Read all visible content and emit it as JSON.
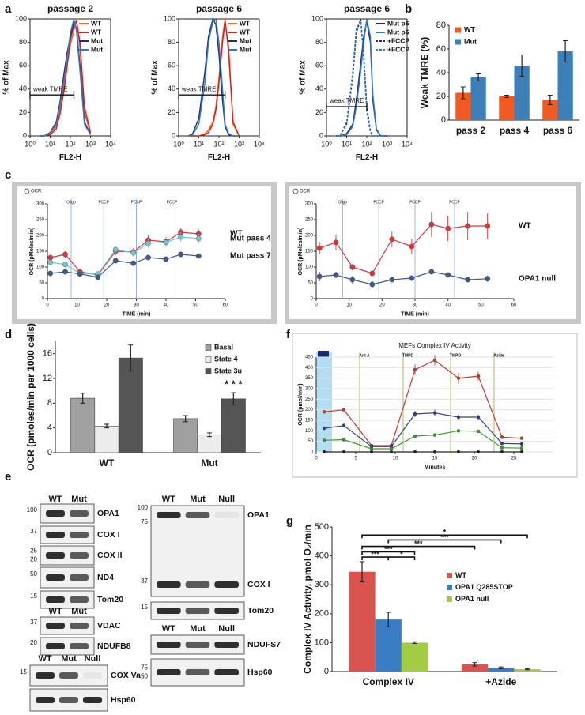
{
  "panel_labels": [
    "a",
    "b",
    "c",
    "d",
    "e",
    "f",
    "g"
  ],
  "chart_data": [
    {
      "type": "line",
      "title": "passage 2",
      "xlabel": "FL2-H",
      "ylabel": "% of Max",
      "log_x": true,
      "x": [
        3,
        5,
        10,
        20,
        30,
        50,
        70,
        100,
        150,
        200,
        300,
        500,
        1000
      ],
      "series": [
        {
          "name": "WT",
          "color": "#f26522",
          "values": [
            0,
            0,
            2,
            8,
            20,
            45,
            62,
            78,
            90,
            100,
            75,
            20,
            2
          ]
        },
        {
          "name": "WT",
          "color": "#e31a1c",
          "values": [
            0,
            0,
            1,
            6,
            18,
            40,
            60,
            82,
            95,
            98,
            80,
            25,
            3
          ]
        },
        {
          "name": "Mut",
          "color": "#1f2a7a",
          "values": [
            0,
            0,
            3,
            12,
            28,
            55,
            72,
            85,
            98,
            92,
            60,
            12,
            1
          ]
        },
        {
          "name": "Mut",
          "color": "#2b7bc0",
          "values": [
            0,
            0,
            3,
            10,
            25,
            50,
            68,
            88,
            100,
            90,
            55,
            10,
            1
          ]
        }
      ],
      "xlim": [
        1,
        10000
      ],
      "xticks": [
        {
          "value": 1,
          "label": "10⁰"
        },
        {
          "value": 10,
          "label": "10¹"
        },
        {
          "value": 100,
          "label": "10²"
        },
        {
          "value": 1000,
          "label": "10³"
        },
        {
          "value": 10000,
          "label": "10⁴"
        }
      ],
      "ylim": [
        0,
        100
      ],
      "yticks": [
        0,
        20,
        40,
        60,
        80,
        100
      ],
      "legend": "upper right",
      "gate": {
        "label": "weak TMRE",
        "range": [
          1,
          150
        ],
        "level": 35
      }
    },
    {
      "type": "line",
      "title": "passage 6",
      "xlabel": "FL2-H",
      "ylabel": "% of Max",
      "log_x": true,
      "x": [
        3,
        5,
        10,
        20,
        30,
        50,
        70,
        100,
        150,
        200,
        300,
        500,
        1000
      ],
      "series": [
        {
          "name": "WT",
          "color": "#f26522",
          "values": [
            0,
            0,
            0,
            2,
            5,
            12,
            25,
            50,
            85,
            100,
            70,
            10,
            0
          ]
        },
        {
          "name": "WT",
          "color": "#e31a1c",
          "values": [
            0,
            0,
            0,
            1,
            3,
            10,
            22,
            45,
            80,
            98,
            75,
            12,
            0
          ]
        },
        {
          "name": "Mut",
          "color": "#1f2a7a",
          "values": [
            0,
            2,
            15,
            55,
            85,
            100,
            95,
            70,
            30,
            8,
            1,
            0,
            0
          ]
        },
        {
          "name": "Mut",
          "color": "#2b7bc0",
          "values": [
            0,
            1,
            10,
            45,
            80,
            98,
            100,
            80,
            40,
            10,
            2,
            0,
            0
          ]
        }
      ],
      "xlim": [
        1,
        10000
      ],
      "xticks": [
        {
          "value": 1,
          "label": "10⁰"
        },
        {
          "value": 10,
          "label": "10¹"
        },
        {
          "value": 100,
          "label": "10²"
        },
        {
          "value": 1000,
          "label": "10³"
        },
        {
          "value": 10000,
          "label": "10⁴"
        }
      ],
      "ylim": [
        0,
        100
      ],
      "yticks": [
        0,
        20,
        40,
        60,
        80,
        100
      ],
      "legend": "upper right",
      "gate": {
        "label": "weak TMRE",
        "range": [
          1,
          200
        ],
        "level": 35
      }
    },
    {
      "type": "line",
      "title": "passage 6",
      "xlabel": "FL2-H",
      "ylabel": "% of Max",
      "log_x": true,
      "x": [
        3,
        5,
        10,
        20,
        30,
        50,
        70,
        100,
        150,
        200,
        300,
        500,
        1000
      ],
      "series": [
        {
          "name": "Mut p6",
          "color": "#1f2a7a",
          "values": [
            0,
            0,
            2,
            10,
            30,
            62,
            85,
            98,
            80,
            30,
            5,
            0,
            0
          ]
        },
        {
          "name": "Mut p6",
          "color": "#2b7bc0",
          "values": [
            0,
            0,
            1,
            8,
            25,
            55,
            80,
            100,
            85,
            35,
            6,
            0,
            0
          ]
        },
        {
          "name": "+FCCP",
          "color": "#1f2a7a",
          "dashed": true,
          "values": [
            0,
            1,
            10,
            50,
            88,
            100,
            70,
            25,
            5,
            0,
            0,
            0,
            0
          ]
        },
        {
          "name": "+FCCP",
          "color": "#2b7bc0",
          "dashed": true,
          "values": [
            0,
            1,
            12,
            55,
            92,
            98,
            65,
            20,
            3,
            0,
            0,
            0,
            0
          ]
        }
      ],
      "xlim": [
        1,
        10000
      ],
      "xticks": [
        {
          "value": 1,
          "label": "10⁰"
        },
        {
          "value": 10,
          "label": "10¹"
        },
        {
          "value": 100,
          "label": "10²"
        },
        {
          "value": 1000,
          "label": "10³"
        },
        {
          "value": 10000,
          "label": "10⁴"
        }
      ],
      "ylim": [
        0,
        100
      ],
      "yticks": [
        0,
        20,
        40,
        60,
        80,
        100
      ],
      "legend": "upper right",
      "gate": {
        "label": "weak TMRE",
        "range": [
          1,
          100
        ],
        "level": 25
      }
    },
    {
      "type": "bar",
      "ylabel": "Weak TMRE (%)",
      "categories": [
        "pass 2",
        "pass 4",
        "pass 6"
      ],
      "series": [
        {
          "name": "WT",
          "color": "#f15a22",
          "values": [
            23,
            20,
            17
          ],
          "errors": [
            5,
            1,
            4
          ]
        },
        {
          "name": "Mut",
          "color": "#3d7fb8",
          "values": [
            36,
            46,
            58
          ],
          "errors": [
            3,
            9,
            9
          ]
        }
      ],
      "ylim": [
        0,
        80
      ],
      "yticks": [
        0,
        20,
        40,
        60,
        80
      ],
      "legend": "upper left"
    },
    {
      "type": "line",
      "header": "OCR",
      "xlabel": "TIME (min)",
      "ylabel": "OCR (pMoles/min)",
      "x": [
        1,
        6,
        11,
        17,
        23,
        29,
        34,
        40,
        45,
        51
      ],
      "series": [
        {
          "name": "WT",
          "color": "#d9363e",
          "values": [
            130,
            140,
            85,
            75,
            150,
            148,
            185,
            180,
            210,
            205
          ],
          "errors": [
            8,
            10,
            6,
            5,
            12,
            12,
            15,
            15,
            15,
            15
          ]
        },
        {
          "name": "Mut pass 4",
          "color": "#6ec6d0",
          "values": [
            115,
            108,
            80,
            78,
            155,
            145,
            175,
            178,
            195,
            190
          ],
          "errors": [
            8,
            10,
            6,
            5,
            12,
            12,
            15,
            15,
            15,
            15
          ]
        },
        {
          "name": "Mut pass 7",
          "color": "#3f5a8a",
          "values": [
            80,
            85,
            78,
            68,
            120,
            112,
            130,
            125,
            140,
            135
          ],
          "errors": [
            5,
            5,
            4,
            4,
            5,
            5,
            5,
            5,
            5,
            5
          ]
        }
      ],
      "xlim": [
        0,
        60
      ],
      "xticks": [
        0,
        10,
        20,
        30,
        40,
        50,
        60
      ],
      "ylim": [
        0,
        300
      ],
      "yticks": [
        0,
        50,
        100,
        150,
        200,
        250,
        300
      ],
      "events": [
        {
          "label": "Oligo",
          "x": 8
        },
        {
          "label": "FCCP",
          "x": 19
        },
        {
          "label": "FCCP",
          "x": 30
        },
        {
          "label": "FCCP",
          "x": 42
        }
      ],
      "end_labels": true
    },
    {
      "type": "line",
      "header": "OCR",
      "xlabel": "TIME (min)",
      "ylabel": "OCR (pMoles/min)",
      "x": [
        1,
        6,
        11,
        17,
        23,
        29,
        35,
        40,
        46,
        52
      ],
      "series": [
        {
          "name": "WT",
          "color": "#d9363e",
          "values": [
            160,
            178,
            100,
            80,
            188,
            165,
            235,
            222,
            230,
            230
          ],
          "errors": [
            20,
            25,
            10,
            5,
            25,
            25,
            40,
            40,
            45,
            40
          ]
        },
        {
          "name": "OPA1 null",
          "color": "#3f5a8a",
          "values": [
            70,
            75,
            60,
            45,
            60,
            65,
            85,
            75,
            60,
            63
          ],
          "errors": [
            15,
            10,
            12,
            10,
            8,
            8,
            6,
            6,
            6,
            10
          ]
        }
      ],
      "xlim": [
        0,
        60
      ],
      "xticks": [
        0,
        10,
        20,
        30,
        40,
        50,
        60
      ],
      "ylim": [
        0,
        300
      ],
      "yticks": [
        0,
        50,
        100,
        150,
        200,
        250,
        300
      ],
      "events": [
        {
          "label": "Oligo",
          "x": 8
        },
        {
          "label": "FCCP",
          "x": 19
        },
        {
          "label": "FCCP",
          "x": 30
        },
        {
          "label": "FCCP",
          "x": 42
        }
      ],
      "end_labels": true
    },
    {
      "type": "bar",
      "ylabel": "OCR (pmoles/min per 1000 cells)",
      "categories": [
        "WT",
        "Mut"
      ],
      "series": [
        {
          "name": "Basal",
          "color": "#a0a0a0",
          "values": [
            8.8,
            5.5
          ],
          "errors": [
            0.8,
            0.5
          ]
        },
        {
          "name": "State 4",
          "color": "#ececec",
          "values": [
            4.3,
            2.9
          ],
          "errors": [
            0.3,
            0.3
          ]
        },
        {
          "name": "State 3u",
          "color": "#555555",
          "values": [
            15.3,
            8.7
          ],
          "errors": [
            2.1,
            1.0
          ]
        }
      ],
      "ylim": [
        0,
        18
      ],
      "yticks": [
        0,
        4,
        8,
        12,
        16
      ],
      "legend": "upper right",
      "annotation": "* * *"
    },
    {
      "type": "line",
      "title": "MEFs Complex IV Activity",
      "xlabel": "Minutes",
      "ylabel": "OCR (pmol/min)",
      "x": [
        1,
        3.5,
        7,
        9.5,
        12.5,
        15,
        18,
        20.5,
        23.5,
        26
      ],
      "series": [
        {
          "color": "#c0392b",
          "values": [
            190,
            200,
            30,
            30,
            390,
            435,
            350,
            360,
            70,
            65
          ],
          "errors": [
            5,
            8,
            5,
            5,
            25,
            25,
            25,
            20,
            5,
            3
          ]
        },
        {
          "color": "#2c3e8f",
          "values": [
            112,
            125,
            25,
            25,
            180,
            185,
            165,
            165,
            40,
            38
          ],
          "errors": [
            10,
            10,
            5,
            5,
            15,
            15,
            12,
            12,
            4,
            3
          ]
        },
        {
          "color": "#3c9a2e",
          "values": [
            55,
            58,
            15,
            15,
            75,
            80,
            100,
            98,
            20,
            18
          ],
          "errors": [
            4,
            4,
            3,
            3,
            8,
            8,
            8,
            8,
            3,
            3
          ]
        },
        {
          "color": "#222222",
          "values": [
            0,
            0,
            0,
            0,
            0,
            0,
            0,
            0,
            0,
            0
          ]
        }
      ],
      "xlim": [
        0,
        30
      ],
      "xticks": [
        0,
        5,
        10,
        15,
        20,
        25
      ],
      "ylim": [
        0,
        450
      ],
      "yticks": [
        0,
        50,
        100,
        150,
        200,
        250,
        300,
        350,
        400,
        450
      ],
      "grid": true,
      "events": [
        {
          "label": "Ant A",
          "x": 5.5
        },
        {
          "label": "TMPD",
          "x": 11
        },
        {
          "label": "TMPD",
          "x": 17
        },
        {
          "label": "Azide",
          "x": 22.5
        }
      ],
      "injection": "1"
    },
    {
      "type": "bar",
      "ylabel": "Complex IV Activity, pmol O₂/min",
      "categories": [
        "Complex IV",
        "+Azide"
      ],
      "series": [
        {
          "name": "WT",
          "color": "#d9534f",
          "values": [
            345,
            25
          ],
          "errors": [
            35,
            6
          ]
        },
        {
          "name": "OPA1 Q285STOP",
          "color": "#3b7dc4",
          "values": [
            180,
            13
          ],
          "errors": [
            25,
            3
          ]
        },
        {
          "name": "OPA1 null",
          "color": "#a4cb45",
          "values": [
            100,
            8
          ],
          "errors": [
            3,
            2
          ]
        }
      ],
      "ylim": [
        0,
        500
      ],
      "yticks": [
        0,
        100,
        200,
        300,
        400,
        500
      ],
      "legend": "center right",
      "significance": [
        "*",
        "***",
        "***",
        "***",
        "***",
        "*"
      ]
    }
  ],
  "blots": [
    {
      "lanes": [
        "WT",
        "Mut"
      ],
      "rows": [
        {
          "label": "OPA1",
          "markers": [
            100
          ]
        },
        {
          "label": "COX I",
          "markers": [
            37
          ]
        },
        {
          "label": "COX II",
          "markers": [
            25,
            20
          ]
        },
        {
          "label": "ND4",
          "markers": [
            50
          ]
        },
        {
          "label": "Tom20",
          "markers": [
            15
          ]
        }
      ]
    },
    {
      "lanes": [
        "WT",
        "Mut"
      ],
      "rows": [
        {
          "label": "VDAC",
          "markers": [
            37
          ]
        },
        {
          "label": "NDUFB8",
          "markers": [
            20
          ]
        }
      ]
    },
    {
      "lanes": [
        "WT",
        "Mut",
        "Null"
      ],
      "rows": [
        {
          "label": "COX Va",
          "markers": [
            15
          ]
        },
        {
          "label": "Hsp60"
        }
      ]
    },
    {
      "lanes": [
        "WT",
        "Mut",
        "Null"
      ],
      "rows": [
        {
          "label": "OPA1",
          "markers": [
            100,
            75
          ]
        },
        {
          "label": "COX I",
          "markers": [
            37
          ]
        },
        {
          "label": "Tom20",
          "markers": [
            15
          ]
        }
      ]
    },
    {
      "lanes": [
        "WT",
        "Mut",
        "Null"
      ],
      "rows": [
        {
          "label": "NDUFS7"
        },
        {
          "label": "Hsp60",
          "markers": [
            75,
            50
          ]
        }
      ]
    }
  ]
}
